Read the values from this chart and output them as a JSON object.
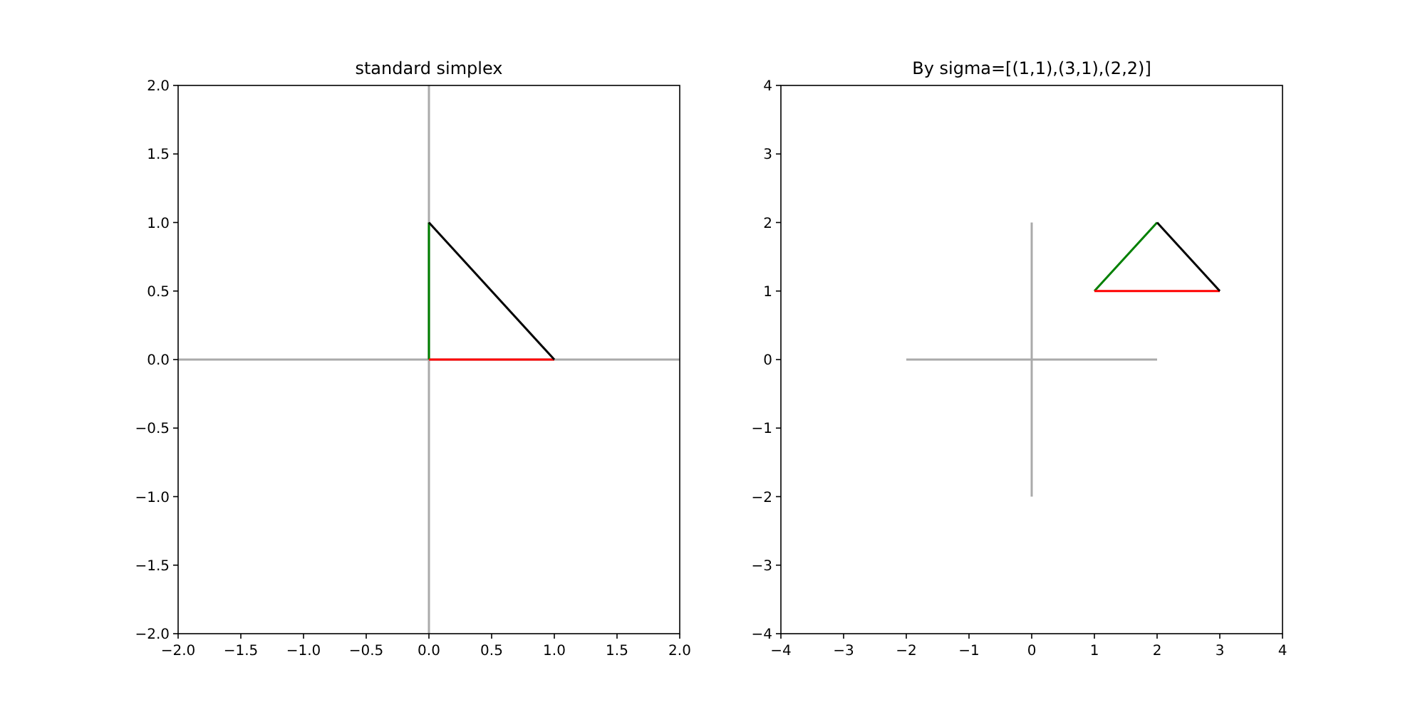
{
  "chart_data": [
    {
      "type": "line",
      "title": "standard simplex",
      "xlim": [
        -2,
        2
      ],
      "ylim": [
        -2,
        2
      ],
      "xticks": [
        {
          "value": -2,
          "label": "−2.0"
        },
        {
          "value": -1.5,
          "label": "−1.5"
        },
        {
          "value": -1,
          "label": "−1.0"
        },
        {
          "value": -0.5,
          "label": "−0.5"
        },
        {
          "value": 0,
          "label": "0.0"
        },
        {
          "value": 0.5,
          "label": "0.5"
        },
        {
          "value": 1,
          "label": "1.0"
        },
        {
          "value": 1.5,
          "label": "1.5"
        },
        {
          "value": 2,
          "label": "2.0"
        }
      ],
      "yticks": [
        {
          "value": -2,
          "label": "−2.0"
        },
        {
          "value": -1.5,
          "label": "−1.5"
        },
        {
          "value": -1,
          "label": "−1.0"
        },
        {
          "value": -0.5,
          "label": "−0.5"
        },
        {
          "value": 0,
          "label": "0.0"
        },
        {
          "value": 0.5,
          "label": "0.5"
        },
        {
          "value": 1,
          "label": "1.0"
        },
        {
          "value": 1.5,
          "label": "1.5"
        },
        {
          "value": 2,
          "label": "2.0"
        }
      ],
      "series": [
        {
          "color": "#aaaaaa",
          "x": [
            -2,
            2
          ],
          "values": [
            0,
            0
          ]
        },
        {
          "color": "#aaaaaa",
          "x": [
            0,
            0
          ],
          "values": [
            -2,
            2
          ]
        },
        {
          "color": "#008000",
          "x": [
            0,
            0
          ],
          "values": [
            0,
            1
          ]
        },
        {
          "color": "#ff0000",
          "x": [
            0,
            1
          ],
          "values": [
            0,
            0
          ]
        },
        {
          "color": "#000000",
          "x": [
            1,
            0
          ],
          "values": [
            0,
            1
          ]
        }
      ]
    },
    {
      "type": "line",
      "title": "By sigma=[(1,1),(3,1),(2,2)]",
      "xlim": [
        -4,
        4
      ],
      "ylim": [
        -4,
        4
      ],
      "xticks": [
        {
          "value": -4,
          "label": "−4"
        },
        {
          "value": -3,
          "label": "−3"
        },
        {
          "value": -2,
          "label": "−2"
        },
        {
          "value": -1,
          "label": "−1"
        },
        0,
        1,
        2,
        3,
        4
      ],
      "yticks": [
        {
          "value": -4,
          "label": "−4"
        },
        {
          "value": -3,
          "label": "−3"
        },
        {
          "value": -2,
          "label": "−2"
        },
        {
          "value": -1,
          "label": "−1"
        },
        0,
        1,
        2,
        3,
        4
      ],
      "series": [
        {
          "color": "#aaaaaa",
          "x": [
            -2,
            2
          ],
          "values": [
            0,
            0
          ]
        },
        {
          "color": "#aaaaaa",
          "x": [
            0,
            0
          ],
          "values": [
            -2,
            2
          ]
        },
        {
          "color": "#008000",
          "x": [
            1,
            2
          ],
          "values": [
            1,
            2
          ]
        },
        {
          "color": "#ff0000",
          "x": [
            1,
            3
          ],
          "values": [
            1,
            1
          ]
        },
        {
          "color": "#000000",
          "x": [
            3,
            2
          ],
          "values": [
            1,
            2
          ]
        }
      ]
    }
  ]
}
